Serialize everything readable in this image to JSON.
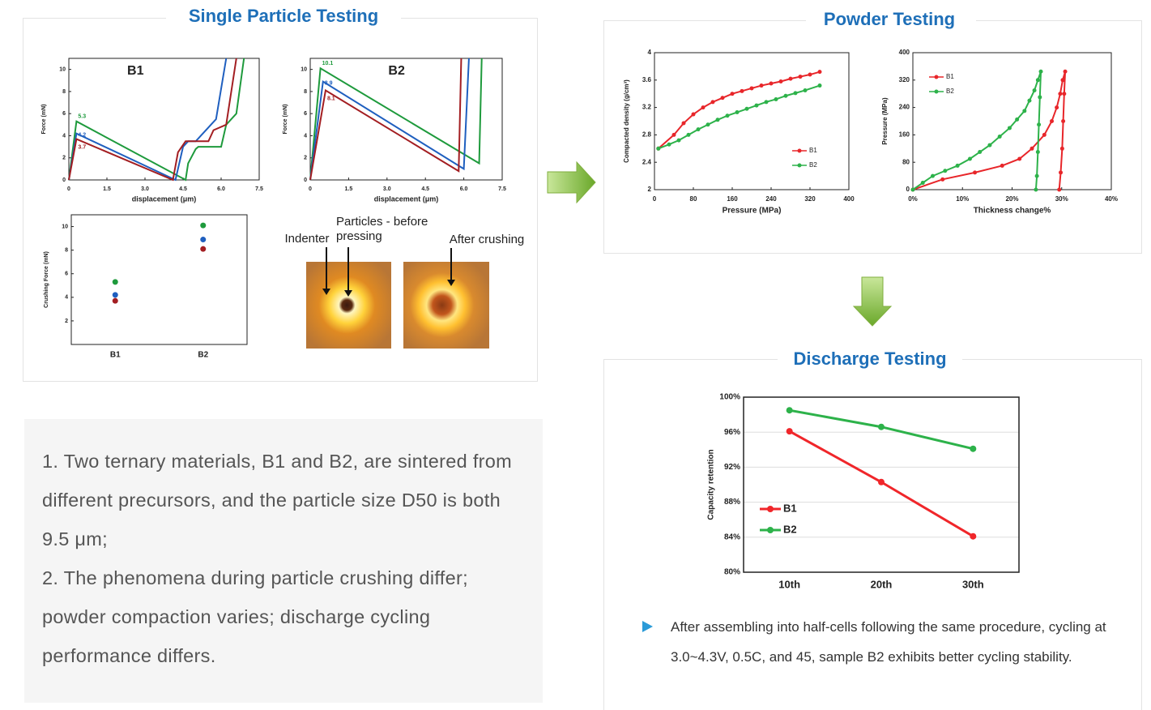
{
  "sections": {
    "single_particle": "Single Particle Testing",
    "powder": "Powder Testing",
    "discharge": "Discharge Testing"
  },
  "image_labels": [
    "Indenter",
    "Particles - before pressing",
    "After crushing"
  ],
  "summary": [
    "1. Two ternary materials, B1 and B2, are sintered from different precursors, and the particle size D50 is both 9.5 μm;",
    "2. The phenomena during particle crushing differ; powder compaction varies; discharge cycling performance differs."
  ],
  "note": "After assembling into half-cells following the same procedure, cycling at 3.0~4.3V, 0.5C, and 45, sample B2 exhibits better cycling stability.",
  "chart_data": [
    {
      "type": "line",
      "title": "B1",
      "xlabel": "displacement (μm)",
      "ylabel": "Force (mN)",
      "xlim": [
        0,
        7.5
      ],
      "xticks": [
        0,
        1.5,
        {
          "value": 3,
          "label": "3.0"
        },
        4.5,
        {
          "value": 6,
          "label": "6.0"
        },
        7.5
      ],
      "ylim": [
        0,
        11
      ],
      "yticks": [
        0,
        2,
        4,
        6,
        8,
        10
      ],
      "annotations": [
        "5.3",
        "4.2",
        "3.7"
      ],
      "series": [
        {
          "color": "#1e9a3c",
          "x": [
            0,
            0.3,
            4.6,
            4.7,
            5.0,
            5.1,
            6.0,
            6.2,
            6.6,
            6.9
          ],
          "values": [
            0,
            5.3,
            0,
            1.5,
            2.8,
            3.0,
            3.0,
            5.0,
            6.0,
            11
          ]
        },
        {
          "color": "#1f5fbf",
          "x": [
            0,
            0.3,
            4.2,
            4.5,
            4.7,
            5.0,
            5.6,
            5.8,
            6.2
          ],
          "values": [
            0,
            4.2,
            0,
            3.0,
            3.5,
            3.5,
            5.0,
            5.5,
            11
          ]
        },
        {
          "color": "#a31e22",
          "x": [
            0,
            0.3,
            4.1,
            4.3,
            4.6,
            5.5,
            5.7,
            6.2,
            6.6
          ],
          "values": [
            0,
            3.7,
            0,
            2.5,
            3.5,
            3.5,
            4.5,
            5.0,
            11
          ]
        }
      ]
    },
    {
      "type": "line",
      "title": "B2",
      "xlabel": "displacement (μm)",
      "ylabel": "Force (mN)",
      "xlim": [
        0,
        7.5
      ],
      "xticks": [
        0,
        1.5,
        {
          "value": 3,
          "label": "3.0"
        },
        4.5,
        {
          "value": 6,
          "label": "6.0"
        },
        7.5
      ],
      "ylim": [
        0,
        11
      ],
      "yticks": [
        0,
        2,
        4,
        6,
        8,
        10
      ],
      "annotations": [
        "10.1",
        "8.9",
        "8.1"
      ],
      "series": [
        {
          "color": "#1e9a3c",
          "x": [
            0,
            0.4,
            6.6,
            6.7
          ],
          "values": [
            0,
            10.1,
            1.5,
            11
          ]
        },
        {
          "color": "#1f5fbf",
          "x": [
            0,
            0.5,
            6.0,
            6.2
          ],
          "values": [
            0,
            8.9,
            1.0,
            11
          ]
        },
        {
          "color": "#a31e22",
          "x": [
            0,
            0.6,
            5.8,
            5.9
          ],
          "values": [
            0,
            8.1,
            0.8,
            11
          ]
        }
      ]
    },
    {
      "type": "scatter",
      "ylabel": "Crushing Force (mN)",
      "categories": [
        "B1",
        "B2"
      ],
      "ylim": [
        0,
        11
      ],
      "yticks": [
        2,
        4,
        6,
        8,
        10
      ],
      "series": [
        {
          "color": "#1e9a3c",
          "values": [
            5.3,
            10.1
          ]
        },
        {
          "color": "#1f5fbf",
          "values": [
            4.2,
            8.9
          ]
        },
        {
          "color": "#a31e22",
          "values": [
            3.7,
            8.1
          ]
        }
      ]
    },
    {
      "type": "line",
      "xlabel": "Pressure  (MPa)",
      "ylabel": "Compacted density  (g/cm³)",
      "xlim": [
        0,
        400
      ],
      "xticks": [
        0,
        80,
        160,
        240,
        320,
        400
      ],
      "ylim": [
        2,
        4
      ],
      "yticks": [
        2,
        2.4,
        2.8,
        3.2,
        3.6,
        4
      ],
      "markers": true,
      "legend": "lower right",
      "series": [
        {
          "name": "B1",
          "color": "#e8262a",
          "x": [
            8,
            40,
            60,
            80,
            100,
            120,
            140,
            160,
            180,
            200,
            220,
            240,
            260,
            280,
            300,
            320,
            340
          ],
          "values": [
            2.6,
            2.8,
            2.97,
            3.1,
            3.2,
            3.28,
            3.34,
            3.4,
            3.44,
            3.48,
            3.52,
            3.55,
            3.58,
            3.62,
            3.65,
            3.68,
            3.72
          ]
        },
        {
          "name": "B2",
          "color": "#2db24a",
          "x": [
            8,
            30,
            50,
            70,
            90,
            110,
            130,
            150,
            170,
            190,
            210,
            230,
            250,
            270,
            290,
            310,
            340
          ],
          "values": [
            2.6,
            2.66,
            2.72,
            2.8,
            2.88,
            2.95,
            3.02,
            3.08,
            3.13,
            3.18,
            3.23,
            3.28,
            3.32,
            3.37,
            3.41,
            3.45,
            3.52
          ]
        }
      ]
    },
    {
      "type": "line",
      "xlabel": "Thickness change%",
      "ylabel": "Pressure  (MPa)",
      "xlim": [
        0,
        40
      ],
      "xticks": [
        {
          "value": 0,
          "label": "0%"
        },
        {
          "value": 10,
          "label": "10%"
        },
        {
          "value": 20,
          "label": "20%"
        },
        {
          "value": 30,
          "label": "30%"
        },
        {
          "value": 40,
          "label": "40%"
        }
      ],
      "ylim": [
        0,
        400
      ],
      "yticks": [
        0,
        80,
        160,
        240,
        320,
        400
      ],
      "markers": true,
      "legend": "upper left",
      "series": [
        {
          "name": "B1",
          "color": "#e8262a",
          "x": [
            0,
            6,
            12.5,
            18,
            21.5,
            24,
            26.5,
            28,
            29,
            29.7,
            30.2,
            30.7,
            30.5,
            30.3,
            30.1,
            29.8,
            29.5
          ],
          "values": [
            0,
            30,
            50,
            70,
            90,
            120,
            160,
            200,
            240,
            280,
            320,
            345,
            280,
            200,
            120,
            50,
            0
          ]
        },
        {
          "name": "B2",
          "color": "#2db24a",
          "x": [
            0,
            2,
            4,
            6.5,
            9,
            11.5,
            13.5,
            15.5,
            17.5,
            19.5,
            21,
            22.5,
            23.5,
            24.5,
            25.2,
            25.8,
            25.6,
            25.4,
            25.2,
            25,
            24.8
          ],
          "values": [
            0,
            20,
            40,
            55,
            70,
            90,
            110,
            130,
            155,
            180,
            205,
            230,
            260,
            290,
            320,
            345,
            270,
            190,
            110,
            40,
            0
          ]
        }
      ]
    },
    {
      "type": "line",
      "ylabel": "Capacity retention",
      "categories": [
        "10th",
        "20th",
        "30th"
      ],
      "ylim": [
        80,
        100
      ],
      "yticks": [
        {
          "value": 80,
          "label": "80%"
        },
        {
          "value": 84,
          "label": "84%"
        },
        {
          "value": 88,
          "label": "88%"
        },
        {
          "value": 92,
          "label": "92%"
        },
        {
          "value": 96,
          "label": "96%"
        },
        {
          "value": 100,
          "label": "100%"
        }
      ],
      "grid": true,
      "markers": true,
      "legend": "center left",
      "series": [
        {
          "name": "B1",
          "color": "#f0262a",
          "values": [
            96.1,
            90.3,
            84.1
          ]
        },
        {
          "name": "B2",
          "color": "#2db24a",
          "values": [
            98.5,
            96.6,
            94.1
          ]
        }
      ]
    }
  ]
}
